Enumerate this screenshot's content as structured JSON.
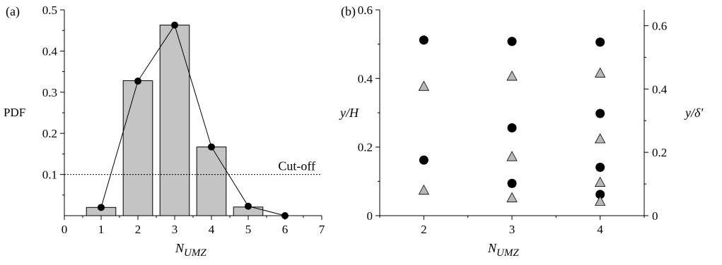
{
  "chart_data": [
    {
      "panel_label": "(a)",
      "type": "bar",
      "ylabel": "PDF",
      "xlabel": "N",
      "xlabel_sub": "UMZ",
      "xlim": [
        0,
        7
      ],
      "ylim": [
        0,
        0.5
      ],
      "xticks": [
        "0",
        "1",
        "2",
        "3",
        "4",
        "5",
        "6",
        "7"
      ],
      "yticks": [
        "0.1",
        "0.2",
        "0.3",
        "0.4",
        "0.5"
      ],
      "bars": {
        "categories": [
          1,
          2,
          3,
          4,
          5
        ],
        "values": [
          0.02,
          0.328,
          0.463,
          0.167,
          0.021
        ]
      },
      "line": {
        "x": [
          1,
          2,
          3,
          4,
          5,
          6
        ],
        "y": [
          0.02,
          0.327,
          0.463,
          0.167,
          0.023,
          0.0
        ]
      },
      "cutoff": {
        "value": 0.1,
        "label": "Cut-off"
      }
    },
    {
      "panel_label": "(b)",
      "type": "scatter",
      "ylabel_left": "y/H",
      "ylabel_right": "y/δ′",
      "xlabel": "N",
      "xlabel_sub": "UMZ",
      "xlim": [
        1.5,
        4.5
      ],
      "ylim_left": [
        0,
        0.6
      ],
      "ylim_right": [
        0,
        0.65
      ],
      "xticks": [
        "2",
        "3",
        "4"
      ],
      "yticks_left": [
        "0",
        "0.2",
        "0.4",
        "0.6"
      ],
      "yticks_right": [
        "0",
        "0.2",
        "0.4",
        "0.6"
      ],
      "series": [
        {
          "marker": "circle",
          "color": "#000000",
          "axis": "left",
          "x": [
            2,
            2,
            3,
            3,
            3,
            4,
            4,
            4,
            4
          ],
          "y": [
            0.512,
            0.162,
            0.508,
            0.256,
            0.094,
            0.506,
            0.298,
            0.141,
            0.062
          ]
        },
        {
          "marker": "triangle",
          "color": "#b8b8b8",
          "axis": "right",
          "x": [
            2,
            2,
            3,
            3,
            3,
            4,
            4,
            4,
            4
          ],
          "y": [
            0.41,
            0.082,
            0.442,
            0.188,
            0.058,
            0.452,
            0.244,
            0.107,
            0.047
          ]
        }
      ]
    }
  ]
}
